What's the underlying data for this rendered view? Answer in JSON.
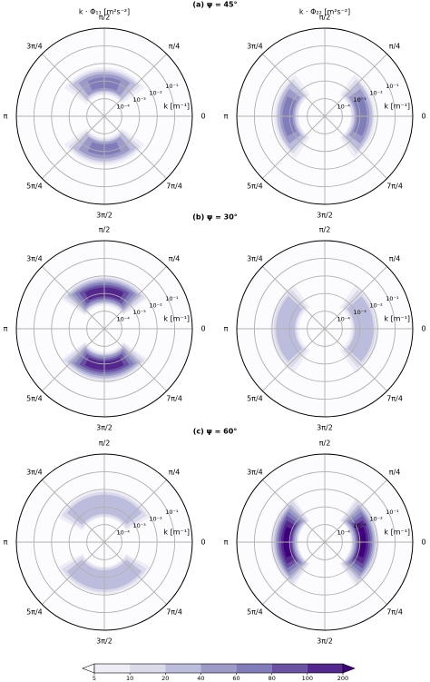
{
  "row_titles": [
    "(a) ψ = 45°",
    "(b) ψ = 30°",
    "(c) ψ = 60°"
  ],
  "colorbar": {
    "levels": [
      5,
      10,
      20,
      40,
      60,
      80,
      100,
      200
    ],
    "colors": [
      "#efedf5",
      "#dadaeb",
      "#bcbddc",
      "#9e9ac8",
      "#807dba",
      "#6a51a3",
      "#54278f"
    ],
    "under_color": "#fcfbfd",
    "over_color": "#3f007d"
  },
  "chart_data": [
    {
      "type": "polar-contour",
      "title": "k · Φ₁₁ [m²s⁻²]",
      "rscale": "log",
      "rlim": [
        1e-05,
        1
      ],
      "rticks": [
        {
          "value": 0.0001,
          "label": "10⁻⁴"
        },
        {
          "value": 0.001,
          "label": "10⁻³"
        },
        {
          "value": 0.01,
          "label": "10⁻²"
        },
        {
          "value": 0.1,
          "label": "10⁻¹"
        }
      ],
      "rlabel": "k [m⁻¹]",
      "thetaticks": [
        0,
        {
          "value": 0.7854,
          "label": "π/4"
        },
        {
          "value": 1.5708,
          "label": "π/2"
        },
        {
          "value": 2.3562,
          "label": "3π/4"
        },
        {
          "value": 3.1416,
          "label": "π"
        },
        {
          "value": 3.927,
          "label": "5π/4"
        },
        {
          "value": 4.7124,
          "label": "3π/2"
        },
        {
          "value": 5.4978,
          "label": "7π/4"
        }
      ],
      "lobe_angles": [
        1.5708,
        4.7124
      ],
      "bands": [
        {
          "level": 5,
          "theta_halfwidth": 0.96,
          "r": [
            0.00016,
            0.006
          ]
        },
        {
          "level": 10,
          "theta_halfwidth": 0.87,
          "r": [
            0.0002,
            0.0045
          ]
        },
        {
          "level": 20,
          "theta_halfwidth": 0.79,
          "r": [
            0.00025,
            0.0035
          ]
        },
        {
          "level": 40,
          "theta_halfwidth": 0.66,
          "r": [
            0.0003,
            0.0025
          ]
        },
        {
          "level": 60,
          "theta_halfwidth": 0.44,
          "r": [
            0.0004,
            0.0016
          ]
        }
      ]
    },
    {
      "type": "polar-contour",
      "title": "k · Φ₂₂ [m²s⁻²]",
      "rscale": "log",
      "rlim": [
        1e-05,
        1
      ],
      "rticks": [
        {
          "value": 0.0001,
          "label": "10⁻⁴"
        },
        {
          "value": 0.001,
          "label": "10⁻³"
        },
        {
          "value": 0.01,
          "label": "10⁻²"
        },
        {
          "value": 0.1,
          "label": "10⁻¹"
        }
      ],
      "rlabel": "k [m⁻¹]",
      "thetaticks": [
        0,
        {
          "value": 0.7854,
          "label": "π/4"
        },
        {
          "value": 1.5708,
          "label": "π/2"
        },
        {
          "value": 2.3562,
          "label": "3π/4"
        },
        {
          "value": 3.1416,
          "label": "π"
        },
        {
          "value": 3.927,
          "label": "5π/4"
        },
        {
          "value": 4.7124,
          "label": "3π/2"
        },
        {
          "value": 5.4978,
          "label": "7π/4"
        }
      ],
      "lobe_angles": [
        0,
        3.1416
      ],
      "bands": [
        {
          "level": 5,
          "theta_halfwidth": 0.96,
          "r": [
            0.0003,
            0.008
          ]
        },
        {
          "level": 10,
          "theta_halfwidth": 0.87,
          "r": [
            0.00035,
            0.006
          ]
        },
        {
          "level": 20,
          "theta_halfwidth": 0.79,
          "r": [
            0.00045,
            0.005
          ]
        },
        {
          "level": 40,
          "theta_halfwidth": 0.66,
          "r": [
            0.00055,
            0.0035
          ]
        },
        {
          "level": 60,
          "theta_halfwidth": 0.49,
          "r": [
            0.0007,
            0.0025
          ]
        }
      ]
    },
    {
      "type": "polar-contour",
      "rscale": "log",
      "rlim": [
        1e-05,
        1
      ],
      "rticks": [
        {
          "value": 0.0001,
          "label": "10⁻⁴"
        },
        {
          "value": 0.001,
          "label": "10⁻³"
        },
        {
          "value": 0.01,
          "label": "10⁻²"
        },
        {
          "value": 0.1,
          "label": "10⁻¹"
        }
      ],
      "rlabel": "k [m⁻¹]",
      "thetaticks": [
        0,
        {
          "value": 0.7854,
          "label": "π/4"
        },
        {
          "value": 1.5708,
          "label": "π/2"
        },
        {
          "value": 2.3562,
          "label": "3π/4"
        },
        {
          "value": 3.1416,
          "label": "π"
        },
        {
          "value": 3.927,
          "label": "5π/4"
        },
        {
          "value": 4.7124,
          "label": "3π/2"
        },
        {
          "value": 5.4978,
          "label": "7π/4"
        }
      ],
      "lobe_angles": [
        1.5708,
        4.7124
      ],
      "bands": [
        {
          "level": 5,
          "theta_halfwidth": 0.96,
          "r": [
            0.0002,
            0.01
          ]
        },
        {
          "level": 10,
          "theta_halfwidth": 0.91,
          "r": [
            0.00025,
            0.008
          ]
        },
        {
          "level": 20,
          "theta_halfwidth": 0.84,
          "r": [
            0.0003,
            0.0065
          ]
        },
        {
          "level": 40,
          "theta_halfwidth": 0.77,
          "r": [
            0.00035,
            0.005
          ]
        },
        {
          "level": 60,
          "theta_halfwidth": 0.7,
          "r": [
            0.00045,
            0.004
          ]
        },
        {
          "level": 80,
          "theta_halfwidth": 0.61,
          "r": [
            0.00055,
            0.003
          ]
        },
        {
          "level": 100,
          "theta_halfwidth": 0.49,
          "r": [
            0.0007,
            0.0022
          ]
        }
      ]
    },
    {
      "type": "polar-contour",
      "rscale": "log",
      "rlim": [
        1e-05,
        1
      ],
      "rticks": [
        {
          "value": 0.0001,
          "label": "10⁻⁴"
        },
        {
          "value": 0.001,
          "label": "10⁻³"
        },
        {
          "value": 0.01,
          "label": "10⁻²"
        },
        {
          "value": 0.1,
          "label": "10⁻¹"
        }
      ],
      "rlabel": "k [m⁻¹]",
      "thetaticks": [
        0,
        {
          "value": 0.7854,
          "label": "π/4"
        },
        {
          "value": 1.5708,
          "label": "π/2"
        },
        {
          "value": 2.3562,
          "label": "3π/4"
        },
        {
          "value": 3.1416,
          "label": "π"
        },
        {
          "value": 3.927,
          "label": "5π/4"
        },
        {
          "value": 4.7124,
          "label": "3π/2"
        },
        {
          "value": 5.4978,
          "label": "7π/4"
        }
      ],
      "lobe_angles": [
        0,
        3.1416
      ],
      "bands": [
        {
          "level": 5,
          "theta_halfwidth": 0.96,
          "r": [
            0.0003,
            0.012
          ]
        },
        {
          "level": 10,
          "theta_halfwidth": 0.87,
          "r": [
            0.0004,
            0.008
          ]
        },
        {
          "level": 20,
          "theta_halfwidth": 0.73,
          "r": [
            0.0005,
            0.006
          ]
        }
      ]
    },
    {
      "type": "polar-contour",
      "rscale": "log",
      "rlim": [
        1e-05,
        1
      ],
      "rticks": [
        {
          "value": 0.0001,
          "label": "10⁻⁴"
        },
        {
          "value": 0.001,
          "label": "10⁻³"
        },
        {
          "value": 0.01,
          "label": "10⁻²"
        },
        {
          "value": 0.1,
          "label": "10⁻¹"
        }
      ],
      "rlabel": "k [m⁻¹]",
      "thetaticks": [
        0,
        {
          "value": 0.7854,
          "label": "π/4"
        },
        {
          "value": 1.5708,
          "label": "π/2"
        },
        {
          "value": 2.3562,
          "label": "3π/4"
        },
        {
          "value": 3.1416,
          "label": "π"
        },
        {
          "value": 3.927,
          "label": "5π/4"
        },
        {
          "value": 4.7124,
          "label": "3π/2"
        },
        {
          "value": 5.4978,
          "label": "7π/4"
        }
      ],
      "lobe_angles": [
        1.5708,
        4.7124
      ],
      "bands": [
        {
          "level": 5,
          "theta_halfwidth": 1.08,
          "r": [
            0.00025,
            0.009
          ]
        },
        {
          "level": 10,
          "theta_halfwidth": 1.01,
          "r": [
            0.0003,
            0.007
          ]
        },
        {
          "level": 20,
          "theta_halfwidth": 0.91,
          "r": [
            0.0004,
            0.005
          ]
        }
      ]
    },
    {
      "type": "polar-contour",
      "rscale": "log",
      "rlim": [
        1e-05,
        1
      ],
      "rticks": [
        {
          "value": 0.0001,
          "label": "10⁻⁴"
        },
        {
          "value": 0.001,
          "label": "10⁻³"
        },
        {
          "value": 0.01,
          "label": "10⁻²"
        },
        {
          "value": 0.1,
          "label": "10⁻¹"
        }
      ],
      "rlabel": "k [m⁻¹]",
      "thetaticks": [
        0,
        {
          "value": 0.7854,
          "label": "π/4"
        },
        {
          "value": 1.5708,
          "label": "π/2"
        },
        {
          "value": 2.3562,
          "label": "3π/4"
        },
        {
          "value": 3.1416,
          "label": "π"
        },
        {
          "value": 3.927,
          "label": "5π/4"
        },
        {
          "value": 4.7124,
          "label": "3π/2"
        },
        {
          "value": 5.4978,
          "label": "7π/4"
        }
      ],
      "lobe_angles": [
        0,
        3.1416
      ],
      "bands": [
        {
          "level": 5,
          "theta_halfwidth": 0.96,
          "r": [
            0.0003,
            0.012
          ]
        },
        {
          "level": 10,
          "theta_halfwidth": 0.91,
          "r": [
            0.00035,
            0.009
          ]
        },
        {
          "level": 20,
          "theta_halfwidth": 0.84,
          "r": [
            0.0004,
            0.0075
          ]
        },
        {
          "level": 40,
          "theta_halfwidth": 0.77,
          "r": [
            0.0005,
            0.006
          ]
        },
        {
          "level": 60,
          "theta_halfwidth": 0.7,
          "r": [
            0.0006,
            0.005
          ]
        },
        {
          "level": 80,
          "theta_halfwidth": 0.61,
          "r": [
            0.0007,
            0.004
          ]
        },
        {
          "level": 100,
          "theta_halfwidth": 0.52,
          "r": [
            0.0008,
            0.003
          ]
        },
        {
          "level": 200,
          "theta_halfwidth": 0.38,
          "r": [
            0.001,
            0.0022
          ]
        }
      ]
    }
  ]
}
